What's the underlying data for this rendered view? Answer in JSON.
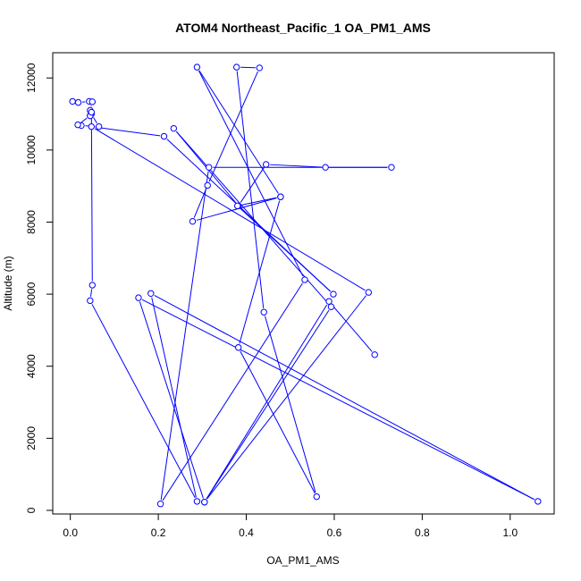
{
  "chart_data": {
    "type": "line",
    "title": "ATOM4 Northeast_Pacific_1 OA_PM1_AMS",
    "xlabel": "OA_PM1_AMS",
    "ylabel": "Altitude (m)",
    "xlim": [
      -0.04,
      1.1
    ],
    "ylim": [
      -100,
      12700
    ],
    "xticks": [
      0.0,
      0.2,
      0.4,
      0.6,
      0.8,
      1.0
    ],
    "xtick_labels": [
      "0.0",
      "0.2",
      "0.4",
      "0.6",
      "0.8",
      "1.0"
    ],
    "yticks": [
      0,
      2000,
      4000,
      6000,
      8000,
      10000,
      12000
    ],
    "ytick_labels": [
      "0",
      "2000",
      "4000",
      "6000",
      "8000",
      "10000",
      "12000"
    ],
    "grid": false,
    "legend": "none",
    "series": [
      {
        "color": "#0000ff",
        "marker": "open-circle",
        "x": [
          0.005,
          0.018,
          0.043,
          0.05,
          0.045,
          0.045,
          0.048,
          0.065,
          0.025,
          0.017,
          0.045,
          0.048,
          0.05,
          0.045,
          0.288,
          0.183,
          1.063,
          0.155,
          0.305,
          0.593,
          0.235,
          0.382,
          0.445,
          0.58,
          0.73,
          0.315,
          0.205,
          0.533,
          0.288,
          0.478,
          0.382,
          0.56,
          0.44,
          0.378,
          0.43,
          0.312,
          0.278,
          0.478,
          0.38,
          0.598,
          0.213,
          0.048,
          0.678,
          0.305,
          0.588,
          0.692
        ],
        "y": [
          11350,
          11320,
          11350,
          11340,
          11100,
          10950,
          11000,
          10650,
          10680,
          10700,
          10950,
          11050,
          6250,
          5820,
          250,
          6020,
          250,
          5900,
          230,
          5650,
          10600,
          8450,
          9600,
          9520,
          9520,
          9520,
          180,
          6400,
          12300,
          8700,
          4520,
          380,
          5500,
          12300,
          12280,
          9020,
          8020,
          8700,
          8450,
          6000,
          10380,
          10650,
          6050,
          230,
          5800,
          4320
        ]
      }
    ]
  }
}
